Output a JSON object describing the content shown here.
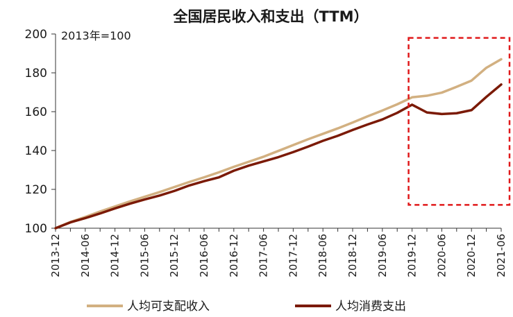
{
  "chart_data": {
    "type": "line",
    "title": "全国居民收入和支出（TTM）",
    "annotation": "2013年=100",
    "ylim": [
      100,
      200
    ],
    "yticks": [
      100,
      120,
      140,
      160,
      180,
      200
    ],
    "x": [
      "2013-12",
      "2014-03",
      "2014-06",
      "2014-09",
      "2014-12",
      "2015-03",
      "2015-06",
      "2015-09",
      "2015-12",
      "2016-03",
      "2016-06",
      "2016-09",
      "2016-12",
      "2017-03",
      "2017-06",
      "2017-09",
      "2017-12",
      "2018-03",
      "2018-06",
      "2018-09",
      "2018-12",
      "2019-03",
      "2019-06",
      "2019-09",
      "2019-12",
      "2020-03",
      "2020-06",
      "2020-09",
      "2020-12",
      "2021-03",
      "2021-06"
    ],
    "xtick_labels": [
      "2013-12",
      "2014-06",
      "2014-12",
      "2015-06",
      "2015-12",
      "2016-06",
      "2016-12",
      "2017-06",
      "2017-12",
      "2018-06",
      "2018-12",
      "2019-06",
      "2019-12",
      "2020-06",
      "2020-12",
      "2021-06"
    ],
    "series": [
      {
        "name": "人均可支配收入",
        "color": "#d2b081",
        "values": [
          100,
          103.2,
          105.8,
          108.6,
          111.2,
          113.8,
          116.2,
          118.6,
          121.2,
          123.8,
          126.2,
          128.8,
          131.6,
          134.2,
          136.8,
          139.8,
          142.8,
          145.8,
          148.6,
          151.4,
          154.4,
          157.6,
          160.6,
          163.8,
          167.4,
          168.2,
          169.8,
          172.8,
          176.0,
          182.6,
          187.0
        ]
      },
      {
        "name": "人均消费支出",
        "color": "#7b1a06",
        "values": [
          100,
          103.0,
          105.2,
          107.6,
          110.2,
          112.6,
          114.8,
          116.8,
          119.2,
          122.0,
          124.2,
          126.2,
          129.6,
          132.2,
          134.4,
          136.6,
          139.2,
          142.0,
          145.0,
          147.6,
          150.6,
          153.4,
          156.0,
          159.4,
          163.6,
          159.6,
          158.8,
          159.2,
          160.8,
          167.6,
          174.0
        ]
      }
    ],
    "highlight": {
      "color": "#e0191a",
      "from_x": "2019-12",
      "to_x": "2021-06",
      "y_from": 112,
      "y_to": 198
    },
    "grid": false,
    "legend_position": "bottom"
  }
}
